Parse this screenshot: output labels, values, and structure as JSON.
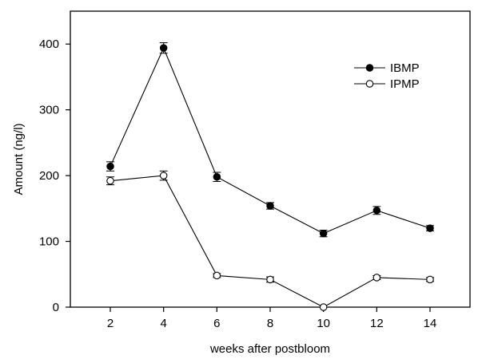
{
  "chart_data": {
    "type": "line",
    "xlabel": "weeks after postbloom",
    "ylabel": "Amount (ng/l)",
    "x": [
      2,
      4,
      6,
      8,
      10,
      12,
      14
    ],
    "xlim": [
      0.5,
      15.5
    ],
    "ylim": [
      0,
      450
    ],
    "xticks": [
      2,
      4,
      6,
      8,
      10,
      12,
      14
    ],
    "yticks": [
      0,
      100,
      200,
      300,
      400
    ],
    "grid": false,
    "legend_position": "top-right",
    "series": [
      {
        "name": "IBMP",
        "marker": "filled-circle",
        "color": "#000000",
        "values": [
          214,
          394,
          198,
          154,
          112,
          147,
          120
        ],
        "errors": [
          7,
          8,
          7,
          5,
          5,
          6,
          4
        ]
      },
      {
        "name": "IPMP",
        "marker": "open-circle",
        "color": "#000000",
        "values": [
          192,
          200,
          48,
          42,
          0,
          45,
          42
        ],
        "errors": [
          6,
          7,
          3,
          4,
          0,
          3,
          3
        ]
      }
    ]
  }
}
